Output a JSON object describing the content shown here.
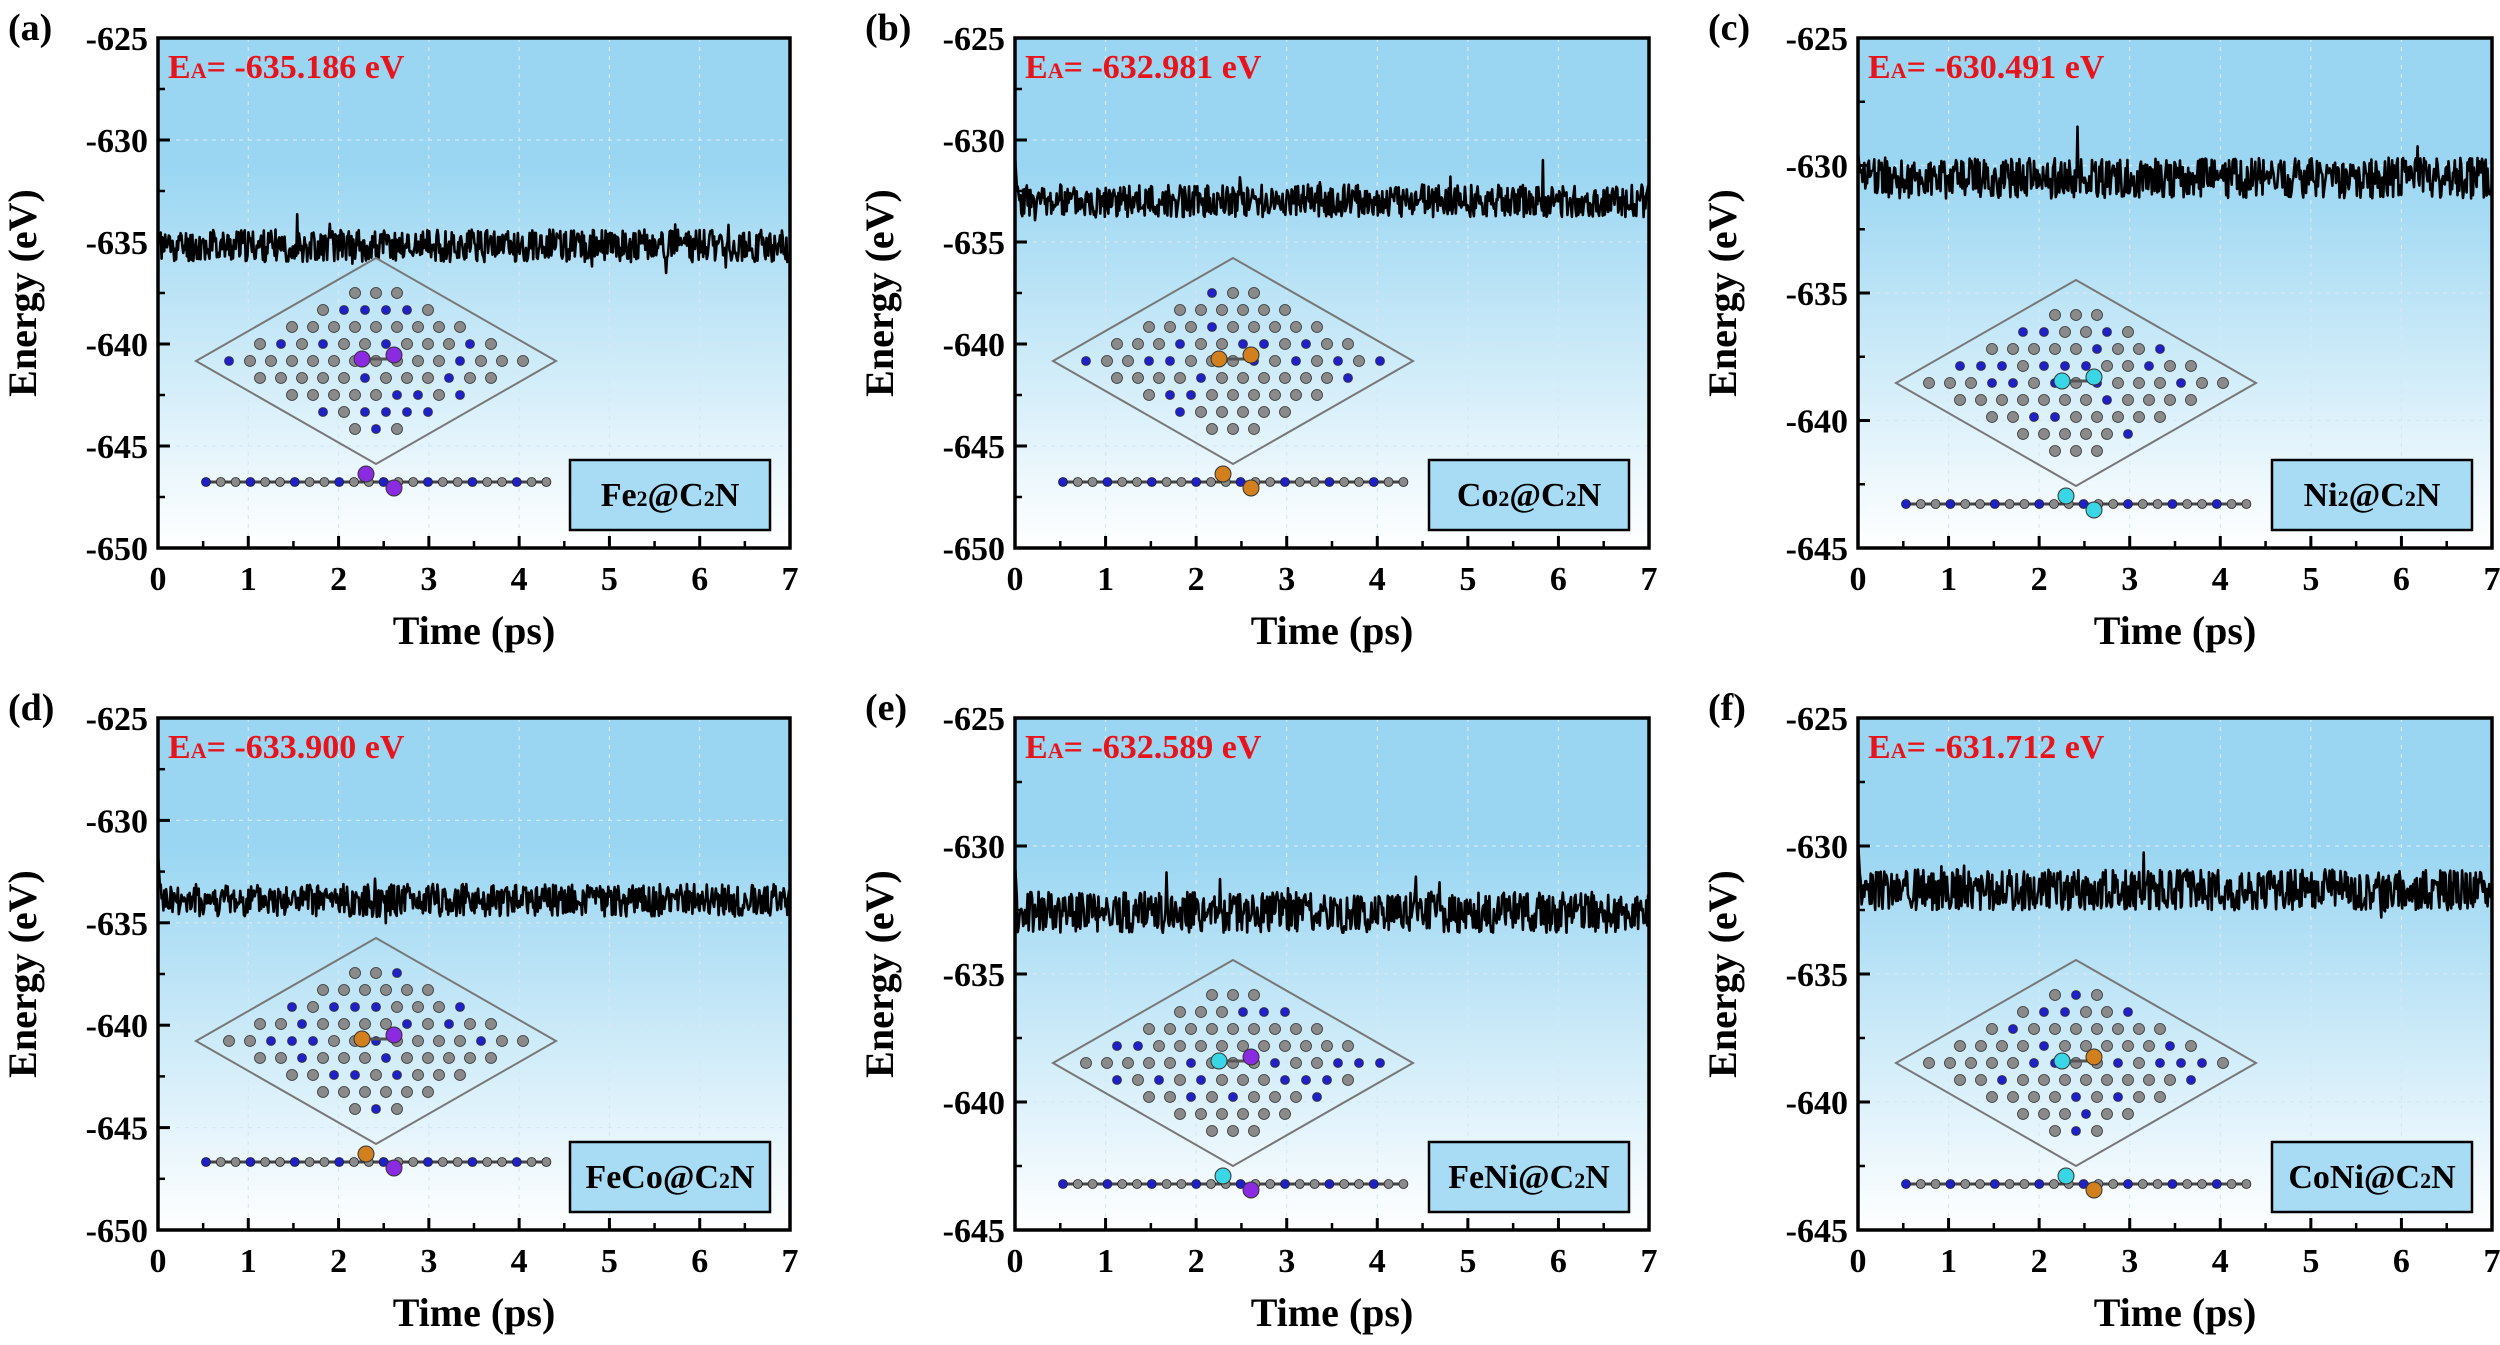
{
  "figure": {
    "colors": {
      "background_top": "#9ad6f2",
      "background_bottom": "#ffffff",
      "line": "#000000",
      "ea_text": "#e8141c",
      "label_box": "#a8dcf5",
      "carbon": "#8a8a8a",
      "nitrogen": "#2020c8",
      "fe": "#8a2be2",
      "co": "#d2801e",
      "ni": "#3ad6e6"
    }
  },
  "chart_data": [
    {
      "type": "line",
      "panel": "(a)",
      "ea_prefix": "E",
      "ea_sub": "A",
      "ea_value": "= -635.186 eV",
      "label_parts": [
        "Fe",
        "2",
        "@C",
        "2",
        "N"
      ],
      "metals": [
        "fe",
        "fe"
      ],
      "xlabel": "Time (ps)",
      "ylabel": "Energy (eV)",
      "xlim": [
        0,
        7
      ],
      "ylim": [
        -650,
        -625
      ],
      "xticks": [
        0,
        1,
        2,
        3,
        4,
        5,
        6,
        7
      ],
      "yticks": [
        -625,
        -630,
        -635,
        -640,
        -645,
        -650
      ],
      "series": [
        {
          "mean": -635.186,
          "amplitude": 0.8,
          "start": -634.8,
          "seed": 11
        }
      ]
    },
    {
      "type": "line",
      "panel": "(b)",
      "ea_prefix": "E",
      "ea_sub": "A",
      "ea_value": "= -632.981 eV",
      "label_parts": [
        "Co",
        "2",
        "@C",
        "2",
        "N"
      ],
      "metals": [
        "co",
        "co"
      ],
      "xlabel": "Time (ps)",
      "ylabel": "Energy (eV)",
      "xlim": [
        0,
        7
      ],
      "ylim": [
        -650,
        -625
      ],
      "xticks": [
        0,
        1,
        2,
        3,
        4,
        5,
        6,
        7
      ],
      "yticks": [
        -625,
        -630,
        -635,
        -640,
        -645,
        -650
      ],
      "series": [
        {
          "mean": -632.981,
          "amplitude": 0.8,
          "start": -630.8,
          "seed": 23
        }
      ]
    },
    {
      "type": "line",
      "panel": "(c)",
      "ea_prefix": "E",
      "ea_sub": "A",
      "ea_value": "= -630.491 eV",
      "label_parts": [
        "Ni",
        "2",
        "@C",
        "2",
        "N"
      ],
      "metals": [
        "ni",
        "ni"
      ],
      "xlabel": "Time (ps)",
      "ylabel": "Energy (eV)",
      "xlim": [
        0,
        7
      ],
      "ylim": [
        -645,
        -625
      ],
      "xticks": [
        0,
        1,
        2,
        3,
        4,
        5,
        6,
        7
      ],
      "yticks": [
        -625,
        -630,
        -635,
        -640,
        -645
      ],
      "series": [
        {
          "mean": -630.491,
          "amplitude": 0.8,
          "start": -629.5,
          "seed": 37
        }
      ]
    },
    {
      "type": "line",
      "panel": "(d)",
      "ea_prefix": "E",
      "ea_sub": "A",
      "ea_value": "= -633.900 eV",
      "label_parts": [
        "FeCo@C",
        "2",
        "N"
      ],
      "metals": [
        "co",
        "fe"
      ],
      "xlabel": "Time (ps)",
      "ylabel": "Energy (eV)",
      "xlim": [
        0,
        7
      ],
      "ylim": [
        -650,
        -625
      ],
      "xticks": [
        0,
        1,
        2,
        3,
        4,
        5,
        6,
        7
      ],
      "yticks": [
        -625,
        -630,
        -635,
        -640,
        -645,
        -650
      ],
      "series": [
        {
          "mean": -633.9,
          "amplitude": 0.8,
          "start": -631.6,
          "seed": 41
        }
      ]
    },
    {
      "type": "line",
      "panel": "(e)",
      "ea_prefix": "E",
      "ea_sub": "A",
      "ea_value": "= -632.589 eV",
      "label_parts": [
        "FeNi@C",
        "2",
        "N"
      ],
      "metals": [
        "ni",
        "fe"
      ],
      "xlabel": "Time (ps)",
      "ylabel": "Energy (eV)",
      "xlim": [
        0,
        7
      ],
      "ylim": [
        -645,
        -625
      ],
      "xticks": [
        0,
        1,
        2,
        3,
        4,
        5,
        6,
        7
      ],
      "yticks": [
        -625,
        -630,
        -635,
        -640,
        -645
      ],
      "series": [
        {
          "mean": -632.589,
          "amplitude": 0.8,
          "start": -630.7,
          "seed": 53
        }
      ]
    },
    {
      "type": "line",
      "panel": "(f)",
      "ea_prefix": "E",
      "ea_sub": "A",
      "ea_value": "= -631.712 eV",
      "label_parts": [
        "CoNi@C",
        "2",
        "N"
      ],
      "metals": [
        "ni",
        "co"
      ],
      "xlabel": "Time (ps)",
      "ylabel": "Energy (eV)",
      "xlim": [
        0,
        7
      ],
      "ylim": [
        -645,
        -625
      ],
      "xticks": [
        0,
        1,
        2,
        3,
        4,
        5,
        6,
        7
      ],
      "yticks": [
        -625,
        -630,
        -635,
        -640,
        -645
      ],
      "series": [
        {
          "mean": -631.712,
          "amplitude": 0.8,
          "start": -629.8,
          "seed": 67
        }
      ]
    }
  ]
}
